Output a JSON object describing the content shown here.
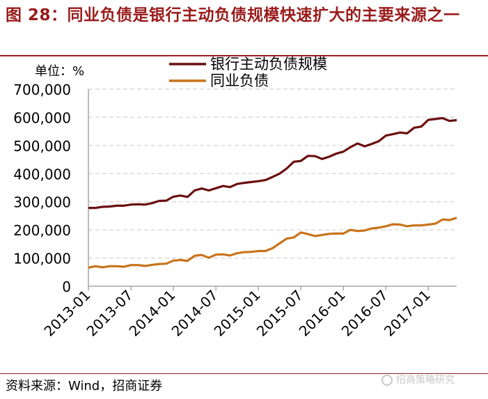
{
  "figure": {
    "title": "图 28：同业负债是银行主动负债规模快速扩大的主要来源之一",
    "source": "资料来源：Wind，招商证券",
    "watermark": "招商策略研究"
  },
  "chart_data": {
    "type": "line",
    "title": "",
    "unit_label": "单位：%",
    "xlabel": "",
    "ylabel": "",
    "ylim": [
      0,
      700000
    ],
    "yticks": [
      0,
      100000,
      200000,
      300000,
      400000,
      500000,
      600000,
      700000
    ],
    "ytick_labels": [
      "0",
      "100,000",
      "200,000",
      "300,000",
      "400,000",
      "500,000",
      "600,000",
      "700,000"
    ],
    "x_tick_labels": [
      "2013-01",
      "2013-07",
      "2014-01",
      "2014-07",
      "2015-01",
      "2015-07",
      "2016-01",
      "2016-07",
      "2017-01"
    ],
    "grid": "horizontal dashed",
    "legend_position": "top-center",
    "x": [
      "2013-01",
      "2013-02",
      "2013-03",
      "2013-04",
      "2013-05",
      "2013-06",
      "2013-07",
      "2013-08",
      "2013-09",
      "2013-10",
      "2013-11",
      "2013-12",
      "2014-01",
      "2014-02",
      "2014-03",
      "2014-04",
      "2014-05",
      "2014-06",
      "2014-07",
      "2014-08",
      "2014-09",
      "2014-10",
      "2014-11",
      "2014-12",
      "2015-01",
      "2015-02",
      "2015-03",
      "2015-04",
      "2015-05",
      "2015-06",
      "2015-07",
      "2015-08",
      "2015-09",
      "2015-10",
      "2015-11",
      "2015-12",
      "2016-01",
      "2016-02",
      "2016-03",
      "2016-04",
      "2016-05",
      "2016-06",
      "2016-07",
      "2016-08",
      "2016-09",
      "2016-10",
      "2016-11",
      "2016-12",
      "2017-01",
      "2017-02",
      "2017-03"
    ],
    "series": [
      {
        "name": "银行主动负债规模",
        "color": "#6b0f0f",
        "values": [
          278000,
          278000,
          282000,
          283000,
          286000,
          286000,
          290000,
          291000,
          290000,
          295000,
          303000,
          304000,
          318000,
          322000,
          317000,
          340000,
          347000,
          340000,
          348000,
          356000,
          352000,
          363000,
          367000,
          370000,
          373000,
          377000,
          388000,
          400000,
          418000,
          442000,
          445000,
          463000,
          462000,
          452000,
          460000,
          471000,
          478000,
          494000,
          507000,
          497000,
          505000,
          515000,
          535000,
          540000,
          546000,
          543000,
          563000,
          567000,
          591000,
          594000,
          597000
        ],
        "values_tail": [
          587000,
          590000
        ]
      },
      {
        "name": "同业负债",
        "color": "#c8731c",
        "values": [
          66000,
          71000,
          67000,
          71000,
          71000,
          69000,
          75000,
          75000,
          72000,
          76000,
          79000,
          80000,
          91000,
          93000,
          90000,
          108000,
          111000,
          101000,
          112000,
          113000,
          109000,
          117000,
          121000,
          122000,
          125000,
          125000,
          135000,
          152000,
          169000,
          173000,
          191000,
          185000,
          178000,
          182000,
          186000,
          187000,
          187000,
          200000,
          196000,
          198000,
          205000,
          208000,
          213000,
          220000,
          219000,
          213000,
          216000,
          216000,
          219000,
          222000,
          237000
        ],
        "values_tail": [
          235000,
          243000
        ]
      }
    ]
  }
}
